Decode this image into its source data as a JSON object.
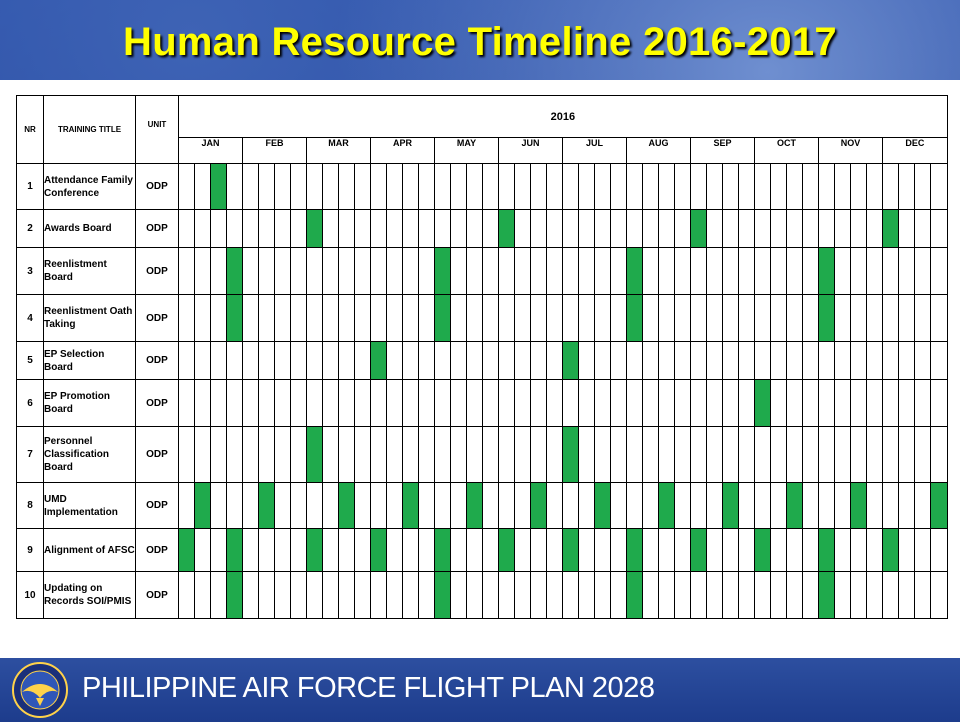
{
  "slide": {
    "title": "Human Resource Timeline 2016-2017",
    "footer": "PHILIPPINE AIR FORCE FLIGHT PLAN 2028",
    "seal_text": "PHILIPPINE AIR FORCE"
  },
  "table": {
    "headers": {
      "nr": "NR",
      "title": "TRAINING TITLE",
      "unit": "UNIT",
      "year": "2016"
    },
    "months": [
      {
        "label": "JAN",
        "weeks": 4
      },
      {
        "label": "FEB",
        "weeks": 4
      },
      {
        "label": "MAR",
        "weeks": 4
      },
      {
        "label": "APR",
        "weeks": 4
      },
      {
        "label": "MAY",
        "weeks": 4
      },
      {
        "label": "JUN",
        "weeks": 4
      },
      {
        "label": "JUL",
        "weeks": 4
      },
      {
        "label": "AUG",
        "weeks": 4
      },
      {
        "label": "SEP",
        "weeks": 4
      },
      {
        "label": "OCT",
        "weeks": 4
      },
      {
        "label": "NOV",
        "weeks": 4
      },
      {
        "label": "DEC",
        "weeks": 4
      }
    ],
    "rows": [
      {
        "nr": "1",
        "title": "Attendance Family Conference",
        "unit": "ODP",
        "active_weeks": [
          2
        ]
      },
      {
        "nr": "2",
        "title": "Awards Board",
        "unit": "ODP",
        "active_weeks": [
          8,
          20,
          32,
          44
        ]
      },
      {
        "nr": "3",
        "title": "Reenlistment Board",
        "unit": "ODP",
        "active_weeks": [
          3,
          16,
          28,
          40
        ]
      },
      {
        "nr": "4",
        "title": "Reenlistment Oath Taking",
        "unit": "ODP",
        "active_weeks": [
          3,
          16,
          28,
          40
        ]
      },
      {
        "nr": "5",
        "title": "EP Selection Board",
        "unit": "ODP",
        "active_weeks": [
          12,
          24
        ]
      },
      {
        "nr": "6",
        "title": "EP Promotion Board",
        "unit": "ODP",
        "active_weeks": [
          36
        ]
      },
      {
        "nr": "7",
        "title": "Personnel Classification Board",
        "unit": "ODP",
        "active_weeks": [
          8,
          24
        ]
      },
      {
        "nr": "8",
        "title": "UMD Implementation",
        "unit": "ODP",
        "active_weeks": [
          1,
          5,
          10,
          14,
          18,
          22,
          26,
          30,
          34,
          38,
          42,
          47
        ]
      },
      {
        "nr": "9",
        "title": "Alignment of AFSC",
        "unit": "ODP",
        "active_weeks": [
          0,
          3,
          8,
          12,
          16,
          20,
          24,
          28,
          32,
          36,
          40,
          44
        ]
      },
      {
        "nr": "10",
        "title": "Updating on Records SOI/PMIS",
        "unit": "ODP",
        "active_weeks": [
          3,
          16,
          28,
          40
        ]
      }
    ]
  },
  "colors": {
    "active": "#1faa4c",
    "title": "#ffff00",
    "background": "#1c3a8a"
  }
}
